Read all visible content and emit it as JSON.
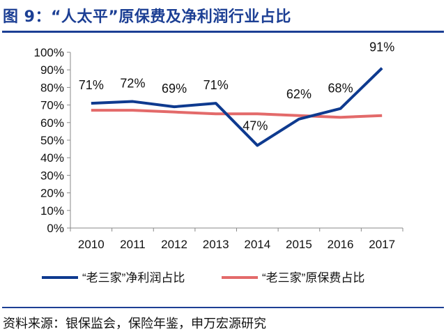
{
  "title": "图 9：“人太平”原保费及净利润行业占比",
  "source": "资料来源：银保监会，保险年鉴，申万宏源研究",
  "chart_data": {
    "type": "line",
    "categories": [
      "2010",
      "2011",
      "2012",
      "2013",
      "2014",
      "2015",
      "2016",
      "2017"
    ],
    "yticks": [
      "0%",
      "10%",
      "20%",
      "30%",
      "40%",
      "50%",
      "60%",
      "70%",
      "80%",
      "90%",
      "100%"
    ],
    "ylim": [
      0,
      100
    ],
    "series": [
      {
        "name": "“老三家”净利润占比",
        "values": [
          71,
          72,
          69,
          71,
          47,
          62,
          68,
          91
        ],
        "labels": [
          "71%",
          "72%",
          "69%",
          "71%",
          "47%",
          "62%",
          "68%",
          "91%"
        ],
        "color": "#0e3a8f"
      },
      {
        "name": "“老三家”原保费占比",
        "values": [
          67,
          67,
          66,
          65,
          65,
          64,
          63,
          64
        ],
        "color": "#e36a6a"
      }
    ],
    "legend": "bottom"
  }
}
